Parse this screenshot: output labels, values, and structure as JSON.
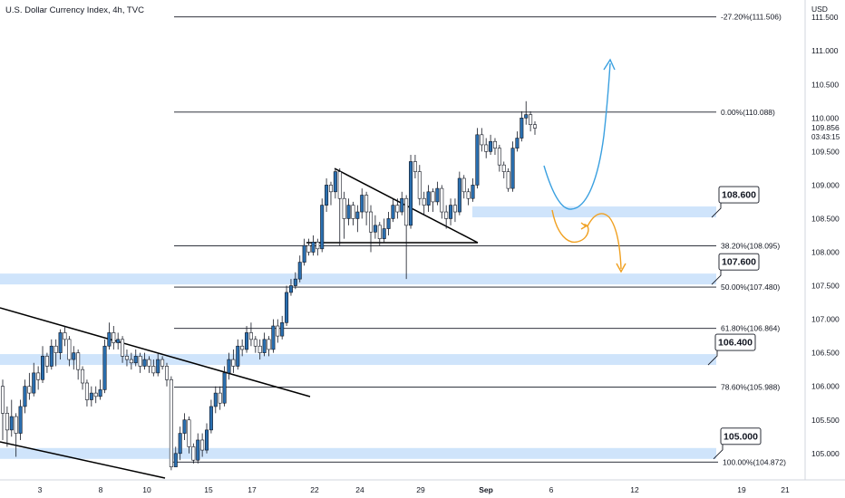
{
  "header": {
    "title": "U.S. Dollar Currency Index, 4h, TVC",
    "currency": "USD"
  },
  "price_info": {
    "last_price": "109.856",
    "countdown": "03:43:15"
  },
  "colors": {
    "bull": "#2a6fb0",
    "bear": "#ffffff",
    "wick": "#131722",
    "zone": "#cfe4fb",
    "fib": "#131722",
    "blue_path": "#3aa0e0",
    "orange_path": "#f0a020"
  },
  "chart_data": {
    "type": "candlestick",
    "symbol": "U.S. Dollar Currency Index",
    "timeframe": "4h",
    "source": "TVC",
    "x_ticks": [
      "3",
      "8",
      "10",
      "15",
      "17",
      "22",
      "24",
      "29",
      "Sep",
      "6",
      "12",
      "19",
      "21"
    ],
    "ylim": [
      104.75,
      111.6
    ],
    "y_ticks": [
      "111.500",
      "111.000",
      "110.500",
      "110.000",
      "109.500",
      "109.000",
      "108.500",
      "108.000",
      "107.500",
      "107.000",
      "106.500",
      "106.000",
      "105.500",
      "105.000"
    ],
    "fib_levels": [
      {
        "label": "-27.20%(111.506)",
        "value": 111.506
      },
      {
        "label": "0.00%(110.088)",
        "value": 110.088
      },
      {
        "label": "38.20%(108.095)",
        "value": 108.095
      },
      {
        "label": "50.00%(107.480)",
        "value": 107.48
      },
      {
        "label": "61.80%(106.864)",
        "value": 106.864
      },
      {
        "label": "78.60%(105.988)",
        "value": 105.988
      },
      {
        "label": "100.00%(104.872)",
        "value": 104.872
      }
    ],
    "zones": [
      {
        "label": "108.600",
        "value": 108.6
      },
      {
        "label": "107.600",
        "value": 107.6
      },
      {
        "label": "106.400",
        "value": 106.4
      },
      {
        "label": "105.000",
        "value": 105.0
      }
    ],
    "candles": [
      [
        106.0,
        105.6,
        106.1,
        105.2
      ],
      [
        105.6,
        105.35,
        105.7,
        105.1
      ],
      [
        105.35,
        105.55,
        105.8,
        105.25
      ],
      [
        105.55,
        105.3,
        105.6,
        104.95
      ],
      [
        105.3,
        105.7,
        105.8,
        105.2
      ],
      [
        105.7,
        106.0,
        106.1,
        105.6
      ],
      [
        106.0,
        105.9,
        106.2,
        105.8
      ],
      [
        105.9,
        106.2,
        106.35,
        105.85
      ],
      [
        106.2,
        106.1,
        106.3,
        105.95
      ],
      [
        106.1,
        106.45,
        106.6,
        106.05
      ],
      [
        106.45,
        106.3,
        106.5,
        106.2
      ],
      [
        106.3,
        106.6,
        106.7,
        106.25
      ],
      [
        106.6,
        106.5,
        106.7,
        106.3
      ],
      [
        106.5,
        106.8,
        106.85,
        106.4
      ],
      [
        106.8,
        106.7,
        106.9,
        106.6
      ],
      [
        106.7,
        106.4,
        106.75,
        106.3
      ],
      [
        106.4,
        106.5,
        106.6,
        106.25
      ],
      [
        106.5,
        106.25,
        106.55,
        106.1
      ],
      [
        106.25,
        106.05,
        106.3,
        105.95
      ],
      [
        106.05,
        105.8,
        106.1,
        105.7
      ],
      [
        105.8,
        105.9,
        106.0,
        105.7
      ],
      [
        105.9,
        105.85,
        106.0,
        105.75
      ],
      [
        105.85,
        105.95,
        106.1,
        105.8
      ],
      [
        105.95,
        106.6,
        106.7,
        105.9
      ],
      [
        106.6,
        106.8,
        106.95,
        106.55
      ],
      [
        106.8,
        106.65,
        106.9,
        106.55
      ],
      [
        106.65,
        106.7,
        106.8,
        106.55
      ],
      [
        106.7,
        106.45,
        106.75,
        106.35
      ],
      [
        106.45,
        106.4,
        106.55,
        106.3
      ],
      [
        106.4,
        106.35,
        106.5,
        106.25
      ],
      [
        106.35,
        106.45,
        106.55,
        106.3
      ],
      [
        106.45,
        106.3,
        106.5,
        106.2
      ],
      [
        106.3,
        106.4,
        106.5,
        106.25
      ],
      [
        106.4,
        106.3,
        106.45,
        106.2
      ],
      [
        106.3,
        106.2,
        106.4,
        106.15
      ],
      [
        106.2,
        106.4,
        106.5,
        106.15
      ],
      [
        106.4,
        106.3,
        106.45,
        106.25
      ],
      [
        106.3,
        106.1,
        106.35,
        106.0
      ],
      [
        106.1,
        104.8,
        106.15,
        104.75
      ],
      [
        104.8,
        105.0,
        105.1,
        104.85
      ],
      [
        105.0,
        105.3,
        105.4,
        104.9
      ],
      [
        105.3,
        105.5,
        105.6,
        105.2
      ],
      [
        105.5,
        105.1,
        105.55,
        105.0
      ],
      [
        105.1,
        104.9,
        105.15,
        104.85
      ],
      [
        104.9,
        105.2,
        105.3,
        104.85
      ],
      [
        105.2,
        105.05,
        105.3,
        104.95
      ],
      [
        105.05,
        105.35,
        105.45,
        105.0
      ],
      [
        105.35,
        105.7,
        105.8,
        105.3
      ],
      [
        105.7,
        105.9,
        106.0,
        105.6
      ],
      [
        105.9,
        105.75,
        106.0,
        105.65
      ],
      [
        105.75,
        106.2,
        106.3,
        105.7
      ],
      [
        106.2,
        106.4,
        106.5,
        106.1
      ],
      [
        106.4,
        106.3,
        106.55,
        106.2
      ],
      [
        106.3,
        106.6,
        106.7,
        106.25
      ],
      [
        106.6,
        106.55,
        106.7,
        106.45
      ],
      [
        106.55,
        106.8,
        106.9,
        106.5
      ],
      [
        106.8,
        106.7,
        106.95,
        106.6
      ],
      [
        106.7,
        106.6,
        106.75,
        106.5
      ],
      [
        106.6,
        106.5,
        106.7,
        106.4
      ],
      [
        106.5,
        106.7,
        106.8,
        106.45
      ],
      [
        106.7,
        106.55,
        106.75,
        106.45
      ],
      [
        106.55,
        106.9,
        107.0,
        106.5
      ],
      [
        106.9,
        106.75,
        107.0,
        106.65
      ],
      [
        106.75,
        106.95,
        107.05,
        106.7
      ],
      [
        106.95,
        107.4,
        107.5,
        106.9
      ],
      [
        107.4,
        107.5,
        107.6,
        107.35
      ],
      [
        107.5,
        107.6,
        107.7,
        107.45
      ],
      [
        107.6,
        107.85,
        107.95,
        107.55
      ],
      [
        107.85,
        108.1,
        108.2,
        107.8
      ],
      [
        108.1,
        108.0,
        108.2,
        107.95
      ],
      [
        108.0,
        108.15,
        108.25,
        107.95
      ],
      [
        108.15,
        108.05,
        108.2,
        107.95
      ],
      [
        108.05,
        108.7,
        108.8,
        108.0
      ],
      [
        108.7,
        109.0,
        109.1,
        108.6
      ],
      [
        109.0,
        108.9,
        109.05,
        108.7
      ],
      [
        108.9,
        109.2,
        109.25,
        108.8
      ],
      [
        109.2,
        108.8,
        109.25,
        108.1
      ],
      [
        108.8,
        108.5,
        108.9,
        108.2
      ],
      [
        108.5,
        108.7,
        108.8,
        108.4
      ],
      [
        108.7,
        108.5,
        108.75,
        108.4
      ],
      [
        108.5,
        108.6,
        108.7,
        108.3
      ],
      [
        108.6,
        108.85,
        108.95,
        108.5
      ],
      [
        108.85,
        108.6,
        108.9,
        108.4
      ],
      [
        108.6,
        108.3,
        108.7,
        108.0
      ],
      [
        108.3,
        108.4,
        108.55,
        108.2
      ],
      [
        108.4,
        108.2,
        108.45,
        108.1
      ],
      [
        108.2,
        108.35,
        108.5,
        108.15
      ],
      [
        108.35,
        108.5,
        108.6,
        108.25
      ],
      [
        108.5,
        108.7,
        108.8,
        108.45
      ],
      [
        108.7,
        108.6,
        108.8,
        108.5
      ],
      [
        108.6,
        108.8,
        108.9,
        108.55
      ],
      [
        108.8,
        108.4,
        108.85,
        107.6
      ],
      [
        108.4,
        109.35,
        109.45,
        108.35
      ],
      [
        109.35,
        109.2,
        109.45,
        109.1
      ],
      [
        109.2,
        108.8,
        109.3,
        108.7
      ],
      [
        108.8,
        108.7,
        108.9,
        108.55
      ],
      [
        108.7,
        108.9,
        109.0,
        108.6
      ],
      [
        108.9,
        108.75,
        108.95,
        108.6
      ],
      [
        108.75,
        108.95,
        109.05,
        108.7
      ],
      [
        108.95,
        108.6,
        109.0,
        108.5
      ],
      [
        108.6,
        108.5,
        108.7,
        108.35
      ],
      [
        108.5,
        108.7,
        108.8,
        108.4
      ],
      [
        108.7,
        108.6,
        108.8,
        108.45
      ],
      [
        108.6,
        109.1,
        109.2,
        108.55
      ],
      [
        109.1,
        108.9,
        109.15,
        108.8
      ],
      [
        108.9,
        108.8,
        108.95,
        108.7
      ],
      [
        108.8,
        109.0,
        109.1,
        108.75
      ],
      [
        109.0,
        109.75,
        109.85,
        108.95
      ],
      [
        109.75,
        109.6,
        109.85,
        109.5
      ],
      [
        109.6,
        109.5,
        109.7,
        109.4
      ],
      [
        109.5,
        109.65,
        109.75,
        109.45
      ],
      [
        109.65,
        109.55,
        109.7,
        109.45
      ],
      [
        109.55,
        109.3,
        109.6,
        109.2
      ],
      [
        109.3,
        109.2,
        109.35,
        109.1
      ],
      [
        109.2,
        108.95,
        109.25,
        108.9
      ],
      [
        108.95,
        109.55,
        109.65,
        108.9
      ],
      [
        109.55,
        109.7,
        109.8,
        109.5
      ],
      [
        109.7,
        110.0,
        110.1,
        109.65
      ],
      [
        110.0,
        110.05,
        110.25,
        109.9
      ],
      [
        110.05,
        109.9,
        110.1,
        109.8
      ],
      [
        109.9,
        109.85,
        109.95,
        109.75
      ]
    ]
  }
}
